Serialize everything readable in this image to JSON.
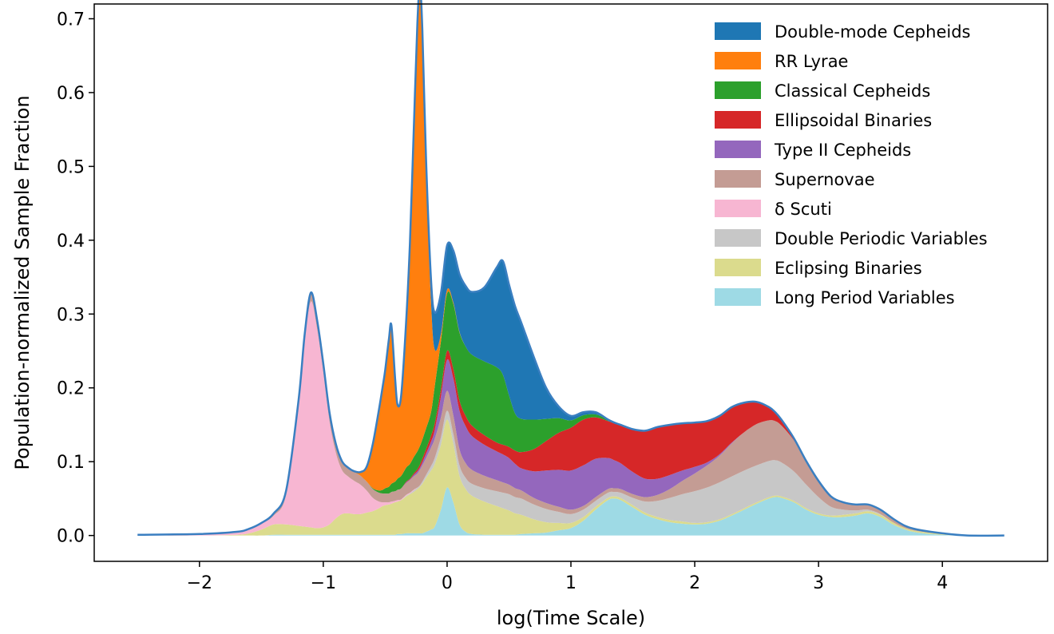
{
  "chart_data": {
    "type": "area",
    "stacked": true,
    "title": "",
    "xlabel": "log(Time Scale)",
    "ylabel": "Population-normalized Sample Fraction",
    "xlim": [
      -2.85,
      4.85
    ],
    "ylim": [
      -0.035,
      0.72
    ],
    "x_ticks": [
      -2,
      -1,
      0,
      1,
      2,
      3,
      4
    ],
    "x_tick_labels": [
      "−2",
      "−1",
      "0",
      "1",
      "2",
      "3",
      "4"
    ],
    "y_ticks": [
      0.0,
      0.1,
      0.2,
      0.3,
      0.4,
      0.5,
      0.6,
      0.7
    ],
    "y_tick_labels": [
      "0.0",
      "0.1",
      "0.2",
      "0.3",
      "0.4",
      "0.5",
      "0.6",
      "0.7"
    ],
    "grid": false,
    "legend_position": "top-right",
    "outline_color": "#3a7fc1",
    "x": [
      -2.5,
      -2.0,
      -1.7,
      -1.6,
      -1.5,
      -1.4,
      -1.3,
      -1.2,
      -1.15,
      -1.1,
      -1.05,
      -1.0,
      -0.95,
      -0.9,
      -0.85,
      -0.8,
      -0.75,
      -0.7,
      -0.65,
      -0.6,
      -0.55,
      -0.52,
      -0.5,
      -0.47,
      -0.45,
      -0.42,
      -0.4,
      -0.37,
      -0.33,
      -0.3,
      -0.27,
      -0.24,
      -0.22,
      -0.2,
      -0.17,
      -0.13,
      -0.1,
      -0.05,
      0.0,
      0.05,
      0.1,
      0.15,
      0.2,
      0.3,
      0.4,
      0.45,
      0.5,
      0.55,
      0.6,
      0.7,
      0.8,
      0.9,
      1.0,
      1.1,
      1.2,
      1.3,
      1.35,
      1.4,
      1.5,
      1.6,
      1.7,
      1.8,
      1.9,
      2.0,
      2.1,
      2.2,
      2.3,
      2.4,
      2.5,
      2.6,
      2.65,
      2.7,
      2.8,
      2.9,
      3.0,
      3.1,
      3.2,
      3.3,
      3.4,
      3.5,
      3.6,
      3.7,
      3.8,
      4.0,
      4.2,
      4.5
    ],
    "series": [
      {
        "name": "Long Period Variables",
        "color": "#9edae5",
        "values": [
          0,
          0,
          0,
          0,
          0,
          0.001,
          0.001,
          0.001,
          0.001,
          0.001,
          0.001,
          0.001,
          0.001,
          0.001,
          0.001,
          0.001,
          0.001,
          0.001,
          0.001,
          0.001,
          0.001,
          0.001,
          0.001,
          0.001,
          0.001,
          0.001,
          0.002,
          0.002,
          0.003,
          0.003,
          0.003,
          0.003,
          0.003,
          0.003,
          0.005,
          0.008,
          0.012,
          0.035,
          0.065,
          0.045,
          0.015,
          0.005,
          0.002,
          0.001,
          0.001,
          0.001,
          0.001,
          0.001,
          0.002,
          0.003,
          0.004,
          0.007,
          0.01,
          0.02,
          0.035,
          0.048,
          0.05,
          0.048,
          0.038,
          0.028,
          0.022,
          0.018,
          0.016,
          0.015,
          0.016,
          0.02,
          0.027,
          0.035,
          0.043,
          0.05,
          0.052,
          0.051,
          0.045,
          0.035,
          0.028,
          0.025,
          0.025,
          0.027,
          0.03,
          0.025,
          0.015,
          0.008,
          0.004,
          0.001,
          0,
          0
        ]
      },
      {
        "name": "Eclipsing Binaries",
        "color": "#dbdb8d",
        "values": [
          0,
          0,
          0.001,
          0.003,
          0.008,
          0.014,
          0.014,
          0.012,
          0.011,
          0.01,
          0.009,
          0.01,
          0.014,
          0.022,
          0.028,
          0.029,
          0.028,
          0.028,
          0.03,
          0.032,
          0.036,
          0.039,
          0.04,
          0.041,
          0.042,
          0.044,
          0.044,
          0.046,
          0.05,
          0.053,
          0.056,
          0.06,
          0.063,
          0.067,
          0.073,
          0.08,
          0.085,
          0.088,
          0.092,
          0.08,
          0.066,
          0.058,
          0.052,
          0.045,
          0.039,
          0.036,
          0.033,
          0.029,
          0.026,
          0.019,
          0.014,
          0.01,
          0.007,
          0.005,
          0.004,
          0.003,
          0.003,
          0.003,
          0.003,
          0.003,
          0.003,
          0.003,
          0.003,
          0.002,
          0.002,
          0.002,
          0.002,
          0.002,
          0.002,
          0.002,
          0.002,
          0.002,
          0.002,
          0.002,
          0.002,
          0.002,
          0.003,
          0.003,
          0.003,
          0.003,
          0.003,
          0.002,
          0.002,
          0.001,
          0,
          0
        ]
      },
      {
        "name": "Double Periodic Variables",
        "color": "#c7c7c7",
        "values": [
          0,
          0,
          0,
          0,
          0,
          0,
          0,
          0,
          0,
          0,
          0,
          0,
          0,
          0,
          0,
          0,
          0,
          0,
          0,
          0,
          0,
          0,
          0,
          0,
          0,
          0,
          0,
          0,
          0.001,
          0.001,
          0.002,
          0.002,
          0.002,
          0.003,
          0.004,
          0.006,
          0.008,
          0.01,
          0.012,
          0.013,
          0.014,
          0.015,
          0.016,
          0.018,
          0.02,
          0.021,
          0.022,
          0.022,
          0.022,
          0.02,
          0.018,
          0.015,
          0.012,
          0.01,
          0.008,
          0.007,
          0.006,
          0.007,
          0.01,
          0.015,
          0.022,
          0.03,
          0.037,
          0.043,
          0.047,
          0.05,
          0.051,
          0.051,
          0.05,
          0.049,
          0.048,
          0.046,
          0.04,
          0.032,
          0.022,
          0.012,
          0.007,
          0.004,
          0.002,
          0.001,
          0,
          0,
          0,
          0,
          0,
          0
        ]
      },
      {
        "name": "δ Scuti",
        "color": "#f7b6d2",
        "values": [
          0.001,
          0.002,
          0.004,
          0.006,
          0.008,
          0.012,
          0.04,
          0.16,
          0.25,
          0.306,
          0.27,
          0.21,
          0.14,
          0.09,
          0.06,
          0.05,
          0.045,
          0.04,
          0.03,
          0.018,
          0.009,
          0.005,
          0.004,
          0.003,
          0.003,
          0.002,
          0.002,
          0.001,
          0.001,
          0.001,
          0.001,
          0,
          0,
          0,
          0,
          0,
          0,
          0,
          0,
          0,
          0,
          0,
          0,
          0,
          0,
          0,
          0,
          0,
          0,
          0,
          0,
          0,
          0,
          0,
          0,
          0,
          0,
          0,
          0,
          0,
          0,
          0,
          0,
          0,
          0,
          0,
          0,
          0,
          0,
          0,
          0,
          0,
          0,
          0,
          0,
          0,
          0,
          0,
          0,
          0,
          0,
          0,
          0,
          0,
          0,
          0
        ]
      },
      {
        "name": "Supernovae",
        "color": "#c49c94",
        "values": [
          0,
          0,
          0,
          0,
          0.001,
          0.003,
          0.006,
          0.01,
          0.011,
          0.012,
          0.012,
          0.012,
          0.012,
          0.012,
          0.012,
          0.012,
          0.012,
          0.012,
          0.012,
          0.012,
          0.012,
          0.012,
          0.012,
          0.012,
          0.013,
          0.013,
          0.014,
          0.015,
          0.016,
          0.017,
          0.018,
          0.019,
          0.021,
          0.022,
          0.023,
          0.025,
          0.026,
          0.027,
          0.027,
          0.025,
          0.022,
          0.02,
          0.019,
          0.017,
          0.015,
          0.014,
          0.013,
          0.012,
          0.011,
          0.009,
          0.008,
          0.007,
          0.006,
          0.005,
          0.005,
          0.005,
          0.005,
          0.005,
          0.005,
          0.006,
          0.008,
          0.012,
          0.018,
          0.024,
          0.03,
          0.036,
          0.045,
          0.052,
          0.056,
          0.055,
          0.053,
          0.05,
          0.042,
          0.032,
          0.022,
          0.014,
          0.01,
          0.008,
          0.007,
          0.006,
          0.005,
          0.003,
          0.002,
          0.001,
          0,
          0
        ]
      },
      {
        "name": "Type II Cepheids",
        "color": "#9467bd",
        "values": [
          0,
          0,
          0,
          0,
          0,
          0,
          0,
          0,
          0,
          0,
          0,
          0,
          0,
          0,
          0,
          0,
          0,
          0,
          0,
          0,
          0,
          0,
          0,
          0,
          0,
          0,
          0,
          0,
          0.001,
          0.001,
          0.002,
          0.003,
          0.003,
          0.004,
          0.006,
          0.008,
          0.012,
          0.028,
          0.042,
          0.05,
          0.052,
          0.05,
          0.046,
          0.042,
          0.039,
          0.038,
          0.036,
          0.033,
          0.03,
          0.036,
          0.044,
          0.05,
          0.053,
          0.055,
          0.052,
          0.042,
          0.038,
          0.035,
          0.03,
          0.025,
          0.022,
          0.019,
          0.014,
          0.009,
          0.004,
          0.002,
          0.001,
          0,
          0,
          0,
          0,
          0,
          0,
          0,
          0,
          0,
          0,
          0,
          0,
          0,
          0,
          0,
          0,
          0,
          0,
          0
        ]
      },
      {
        "name": "Ellipsoidal Binaries",
        "color": "#d62728",
        "values": [
          0,
          0,
          0,
          0,
          0,
          0,
          0,
          0,
          0,
          0,
          0,
          0,
          0,
          0,
          0,
          0,
          0,
          0,
          0,
          0,
          0,
          0,
          0,
          0,
          0,
          0,
          0,
          0,
          0.001,
          0.001,
          0.002,
          0.003,
          0.004,
          0.005,
          0.006,
          0.008,
          0.009,
          0.01,
          0.012,
          0.013,
          0.014,
          0.014,
          0.014,
          0.013,
          0.012,
          0.013,
          0.015,
          0.018,
          0.022,
          0.03,
          0.04,
          0.05,
          0.058,
          0.062,
          0.056,
          0.05,
          0.05,
          0.052,
          0.058,
          0.065,
          0.07,
          0.068,
          0.064,
          0.06,
          0.056,
          0.052,
          0.048,
          0.04,
          0.03,
          0.018,
          0.012,
          0.008,
          0.003,
          0,
          0,
          0,
          0,
          0,
          0,
          0,
          0,
          0,
          0,
          0,
          0,
          0
        ]
      },
      {
        "name": "Classical Cepheids",
        "color": "#2ca02c",
        "values": [
          0,
          0,
          0,
          0,
          0,
          0,
          0,
          0,
          0,
          0,
          0,
          0,
          0,
          0,
          0,
          0,
          0,
          0,
          0,
          0.001,
          0.003,
          0.005,
          0.007,
          0.009,
          0.011,
          0.013,
          0.015,
          0.017,
          0.019,
          0.02,
          0.022,
          0.024,
          0.025,
          0.026,
          0.028,
          0.032,
          0.05,
          0.065,
          0.078,
          0.088,
          0.092,
          0.094,
          0.096,
          0.1,
          0.102,
          0.095,
          0.07,
          0.05,
          0.045,
          0.04,
          0.03,
          0.02,
          0.01,
          0.006,
          0.004,
          0.002,
          0.001,
          0,
          0,
          0,
          0,
          0,
          0,
          0,
          0,
          0,
          0,
          0,
          0,
          0,
          0,
          0,
          0,
          0,
          0,
          0,
          0,
          0,
          0,
          0,
          0,
          0,
          0,
          0,
          0,
          0
        ]
      },
      {
        "name": "RR Lyrae",
        "color": "#ff7f0e",
        "values": [
          0,
          0,
          0,
          0,
          0,
          0,
          0,
          0,
          0,
          0,
          0,
          0,
          0,
          0,
          0,
          0,
          0.001,
          0.005,
          0.02,
          0.06,
          0.11,
          0.14,
          0.16,
          0.2,
          0.215,
          0.14,
          0.1,
          0.11,
          0.2,
          0.3,
          0.44,
          0.58,
          0.62,
          0.55,
          0.35,
          0.15,
          0.05,
          0.01,
          0.005,
          0.002,
          0.001,
          0,
          0,
          0,
          0,
          0,
          0,
          0,
          0,
          0,
          0,
          0,
          0,
          0,
          0,
          0,
          0,
          0,
          0,
          0,
          0,
          0,
          0,
          0,
          0,
          0,
          0,
          0,
          0,
          0,
          0,
          0,
          0,
          0,
          0,
          0,
          0,
          0,
          0,
          0,
          0,
          0,
          0,
          0,
          0,
          0
        ]
      },
      {
        "name": "Double-mode Cepheids",
        "color": "#1f77b4",
        "values": [
          0,
          0,
          0,
          0,
          0,
          0,
          0,
          0,
          0,
          0,
          0,
          0,
          0,
          0,
          0,
          0,
          0,
          0,
          0,
          0,
          0,
          0,
          0,
          0,
          0,
          0,
          0,
          0,
          0,
          0,
          0,
          0,
          0.002,
          0.006,
          0.015,
          0.03,
          0.05,
          0.055,
          0.06,
          0.07,
          0.078,
          0.082,
          0.085,
          0.1,
          0.135,
          0.154,
          0.15,
          0.145,
          0.13,
          0.085,
          0.042,
          0.016,
          0.006,
          0.004,
          0.003,
          0,
          0,
          0,
          0,
          0,
          0,
          0,
          0,
          0,
          0,
          0,
          0,
          0,
          0,
          0,
          0,
          0,
          0,
          0,
          0,
          0,
          0,
          0,
          0,
          0,
          0,
          0,
          0,
          0,
          0,
          0
        ]
      }
    ]
  }
}
